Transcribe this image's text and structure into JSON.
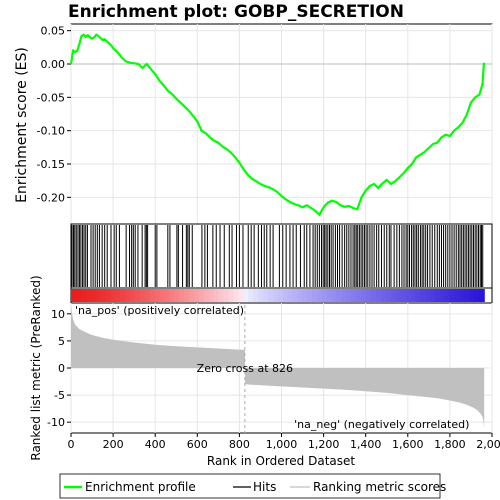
{
  "chart_data": {
    "type": "line",
    "title": "Enrichment plot: GOBP_SECRETION",
    "x_axis": {
      "label": "Rank in Ordered Dataset",
      "range": [
        0,
        2000
      ],
      "ticks": [
        0,
        200,
        400,
        600,
        800,
        1000,
        1200,
        1400,
        1600,
        1800,
        2000
      ],
      "tick_labels": [
        "0",
        "200",
        "400",
        "600",
        "800",
        "1,000",
        "1,200",
        "1,400",
        "1,600",
        "1,800",
        "2,000"
      ]
    },
    "es_panel": {
      "ylabel": "Enrichment score (ES)",
      "ylim": [
        -0.24,
        0.06
      ],
      "yticks": [
        0.05,
        0.0,
        -0.05,
        -0.1,
        -0.15,
        -0.2
      ],
      "ytick_labels": [
        "0.05",
        "0.00",
        "-0.05",
        "-0.10",
        "-0.15",
        "-0.20"
      ],
      "color": "#00ff00",
      "series": {
        "name": "Enrichment profile",
        "x": [
          0,
          10,
          20,
          30,
          40,
          50,
          60,
          70,
          80,
          90,
          100,
          110,
          120,
          130,
          140,
          150,
          160,
          170,
          180,
          190,
          200,
          220,
          240,
          260,
          280,
          300,
          320,
          340,
          360,
          380,
          400,
          420,
          440,
          460,
          480,
          500,
          520,
          540,
          560,
          580,
          600,
          620,
          640,
          660,
          680,
          700,
          720,
          740,
          760,
          780,
          800,
          820,
          840,
          860,
          880,
          900,
          920,
          940,
          960,
          980,
          1000,
          1020,
          1040,
          1060,
          1080,
          1100,
          1120,
          1140,
          1160,
          1180,
          1200,
          1220,
          1240,
          1260,
          1280,
          1300,
          1320,
          1340,
          1360,
          1380,
          1400,
          1420,
          1440,
          1460,
          1480,
          1500,
          1520,
          1540,
          1560,
          1580,
          1600,
          1620,
          1640,
          1660,
          1680,
          1700,
          1720,
          1740,
          1760,
          1780,
          1800,
          1820,
          1840,
          1860,
          1880,
          1900,
          1920,
          1940,
          1955,
          1962
        ],
        "y": [
          0.0,
          0.02,
          0.018,
          0.02,
          0.03,
          0.042,
          0.044,
          0.041,
          0.043,
          0.04,
          0.038,
          0.04,
          0.044,
          0.042,
          0.039,
          0.036,
          0.037,
          0.034,
          0.031,
          0.028,
          0.024,
          0.018,
          0.01,
          0.004,
          0.002,
          0.001,
          0.0,
          -0.006,
          0.0,
          -0.008,
          -0.015,
          -0.025,
          -0.032,
          -0.04,
          -0.045,
          -0.052,
          -0.058,
          -0.064,
          -0.07,
          -0.078,
          -0.086,
          -0.1,
          -0.104,
          -0.11,
          -0.115,
          -0.118,
          -0.124,
          -0.128,
          -0.133,
          -0.14,
          -0.148,
          -0.158,
          -0.166,
          -0.172,
          -0.176,
          -0.18,
          -0.183,
          -0.185,
          -0.188,
          -0.192,
          -0.198,
          -0.203,
          -0.207,
          -0.21,
          -0.212,
          -0.215,
          -0.212,
          -0.216,
          -0.22,
          -0.226,
          -0.215,
          -0.208,
          -0.205,
          -0.207,
          -0.212,
          -0.214,
          -0.213,
          -0.216,
          -0.218,
          -0.2,
          -0.19,
          -0.183,
          -0.18,
          -0.186,
          -0.179,
          -0.174,
          -0.18,
          -0.176,
          -0.17,
          -0.164,
          -0.156,
          -0.15,
          -0.14,
          -0.136,
          -0.132,
          -0.126,
          -0.12,
          -0.118,
          -0.11,
          -0.106,
          -0.108,
          -0.1,
          -0.095,
          -0.088,
          -0.076,
          -0.058,
          -0.05,
          -0.046,
          -0.03,
          0.002
        ]
      }
    },
    "hits_panel": {
      "label": "Hits",
      "x": [
        5,
        12,
        18,
        25,
        33,
        40,
        47,
        55,
        62,
        70,
        78,
        95,
        105,
        115,
        125,
        135,
        148,
        160,
        172,
        190,
        205,
        215,
        230,
        262,
        278,
        288,
        296,
        305,
        318,
        338,
        352,
        358,
        364,
        400,
        408,
        460,
        470,
        503,
        510,
        530,
        548,
        555,
        562,
        576,
        622,
        636,
        648,
        674,
        690,
        708,
        728,
        752,
        765,
        786,
        800,
        817,
        842,
        856,
        870,
        890,
        905,
        918,
        930,
        946,
        960,
        990,
        1006,
        1022,
        1040,
        1055,
        1070,
        1090,
        1108,
        1120,
        1135,
        1150,
        1160,
        1170,
        1180,
        1190,
        1198,
        1205,
        1212,
        1220,
        1228,
        1236,
        1245,
        1256,
        1266,
        1276,
        1288,
        1300,
        1310,
        1320,
        1330,
        1340,
        1348,
        1355,
        1362,
        1370,
        1378,
        1386,
        1394,
        1402,
        1410,
        1420,
        1430,
        1440,
        1452,
        1462,
        1475,
        1488,
        1500,
        1512,
        1520,
        1535,
        1548,
        1560,
        1572,
        1582,
        1592,
        1600,
        1608,
        1618,
        1626,
        1634,
        1642,
        1650,
        1660,
        1668,
        1676,
        1685,
        1694,
        1705,
        1716,
        1728,
        1740,
        1750,
        1760,
        1770,
        1780,
        1790,
        1800,
        1810,
        1820,
        1830,
        1840,
        1848,
        1856,
        1864,
        1872,
        1880,
        1888,
        1896,
        1904,
        1912,
        1920,
        1928,
        1936,
        1944,
        1950,
        1956
      ]
    },
    "rank_panel": {
      "ylabel": "Ranked list metric (PreRanked)",
      "ylim": [
        -12,
        12
      ],
      "yticks": [
        10,
        5,
        0,
        -5,
        -10
      ],
      "ytick_labels": [
        "10",
        "5",
        "0",
        "-5",
        "-10"
      ],
      "color": "#c0c0c0",
      "series": {
        "name": "Ranking metric scores",
        "x": [
          0,
          5,
          10,
          20,
          40,
          60,
          80,
          100,
          150,
          200,
          300,
          400,
          500,
          600,
          700,
          800,
          826,
          827,
          900,
          1000,
          1100,
          1200,
          1300,
          1400,
          1500,
          1600,
          1700,
          1760,
          1800,
          1850,
          1880,
          1910,
          1930,
          1945,
          1955,
          1960,
          1963
        ],
        "y": [
          11.5,
          10.0,
          9.0,
          8.0,
          7.2,
          6.8,
          6.4,
          6.1,
          5.6,
          5.2,
          4.7,
          4.3,
          4.0,
          3.8,
          3.6,
          3.4,
          3.35,
          -3.0,
          -3.2,
          -3.4,
          -3.6,
          -3.8,
          -4.0,
          -4.3,
          -4.6,
          -5.0,
          -5.4,
          -5.7,
          -6.0,
          -6.4,
          -6.8,
          -7.3,
          -7.8,
          -8.4,
          -9.0,
          -10.0,
          -11.2
        ]
      },
      "zero_cross_label": "Zero cross at 826",
      "pos_label": "'na_pos' (positively correlated)",
      "neg_label": "'na_neg' (negatively correlated)",
      "pos_color": "#ff0000",
      "neg_color": "#0000ff"
    },
    "legend": {
      "placement": "bottom",
      "items": [
        {
          "label": "Enrichment profile",
          "color": "#00ff00"
        },
        {
          "label": "Hits",
          "color": "#000000"
        },
        {
          "label": "Ranking metric scores",
          "color": "#c0c0c0"
        }
      ]
    }
  }
}
